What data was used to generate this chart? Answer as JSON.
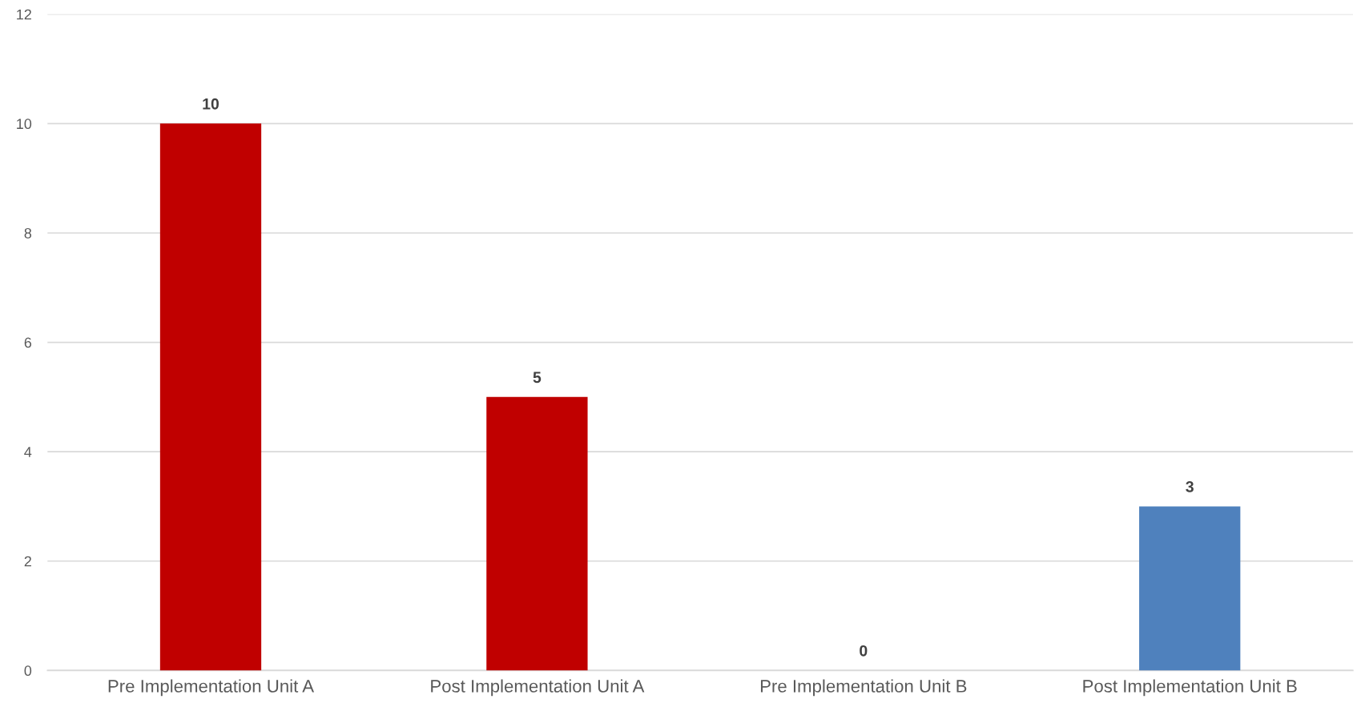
{
  "chart_data": {
    "type": "bar",
    "categories": [
      "Pre Implementation Unit A",
      "Post Implementation Unit A",
      "Pre Implementation Unit B",
      "Post Implementation Unit B"
    ],
    "values": [
      10,
      5,
      0,
      3
    ],
    "colors": [
      "#c00000",
      "#c00000",
      "#4f81bd",
      "#4f81bd"
    ],
    "ylim": [
      0,
      12
    ],
    "yticks": [
      0,
      2,
      4,
      6,
      8,
      10,
      12
    ],
    "grid": "y",
    "data_labels": true
  }
}
